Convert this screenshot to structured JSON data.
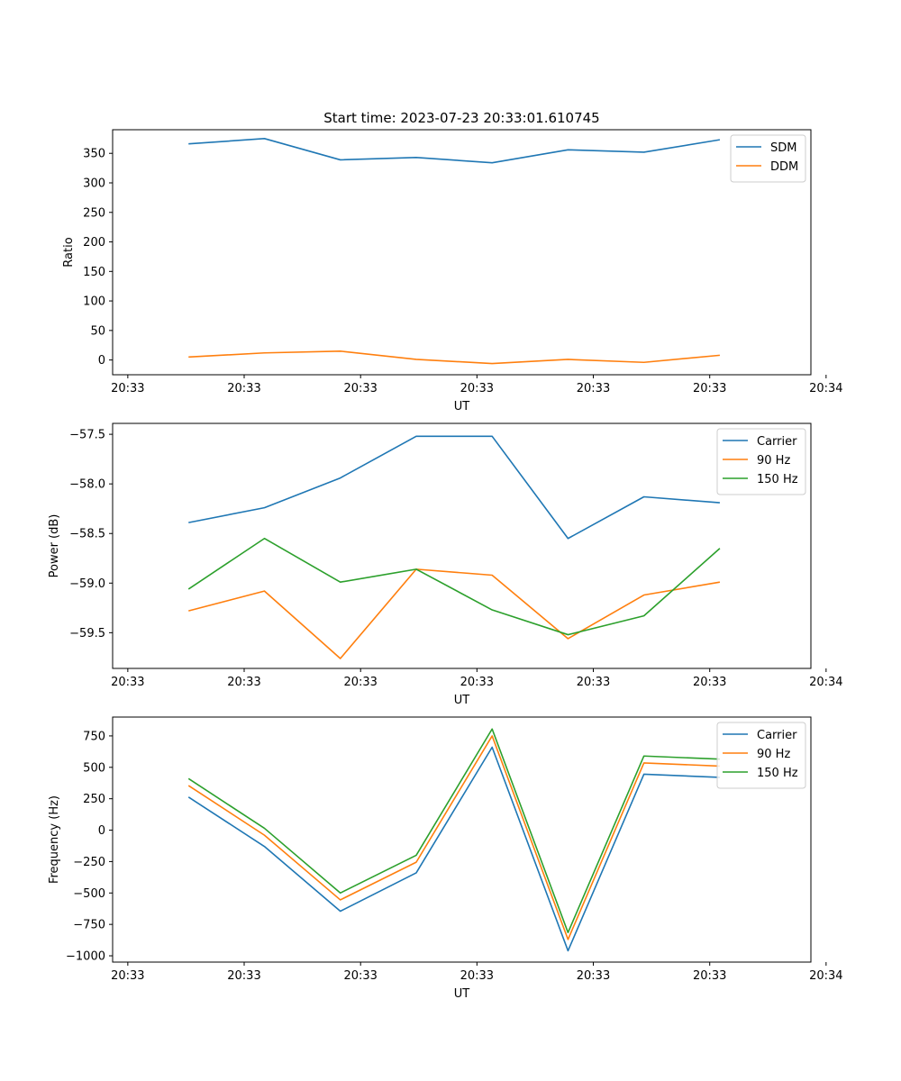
{
  "figure_title": "Start time: 2023-07-23 20:33:01.610745",
  "chart_data": [
    {
      "type": "line",
      "title": "Start time: 2023-07-23 20:33:01.610745",
      "xlabel": "UT",
      "ylabel": "Ratio",
      "xlim": [
        0,
        9.2
      ],
      "x_ticks": [
        0.2,
        1.733,
        3.267,
        4.8,
        6.333,
        7.867,
        9.4
      ],
      "x_tick_labels": [
        "20:33",
        "20:33",
        "20:33",
        "20:33",
        "20:33",
        "20:33",
        "20:34"
      ],
      "ylim": [
        -25,
        390
      ],
      "y_ticks": [
        0,
        50,
        100,
        150,
        200,
        250,
        300,
        350
      ],
      "y_tick_labels": [
        "0",
        "50",
        "100",
        "150",
        "200",
        "250",
        "300",
        "350"
      ],
      "x": [
        1,
        2,
        3,
        4,
        5,
        6,
        7,
        8
      ],
      "series": [
        {
          "name": "SDM",
          "color": "#1f77b4",
          "values": [
            366,
            375,
            339,
            343,
            334,
            356,
            352,
            373
          ]
        },
        {
          "name": "DDM",
          "color": "#ff7f0e",
          "values": [
            5,
            12,
            15,
            1,
            -6,
            1,
            -4,
            8
          ]
        }
      ],
      "legend": "top-right"
    },
    {
      "type": "line",
      "title": "",
      "xlabel": "UT",
      "ylabel": "Power (dB)",
      "xlim": [
        0,
        9.2
      ],
      "x_ticks": [
        0.2,
        1.733,
        3.267,
        4.8,
        6.333,
        7.867,
        9.4
      ],
      "x_tick_labels": [
        "20:33",
        "20:33",
        "20:33",
        "20:33",
        "20:33",
        "20:33",
        "20:34"
      ],
      "ylim": [
        -59.86,
        -57.39
      ],
      "y_ticks": [
        -59.5,
        -59.0,
        -58.5,
        -58.0,
        -57.5
      ],
      "y_tick_labels": [
        "−59.5",
        "−59.0",
        "−58.5",
        "−58.0",
        "−57.5"
      ],
      "x": [
        1,
        2,
        3,
        4,
        5,
        6,
        7,
        8
      ],
      "series": [
        {
          "name": "Carrier",
          "color": "#1f77b4",
          "values": [
            -58.39,
            -58.24,
            -57.94,
            -57.52,
            -57.52,
            -58.55,
            -58.13,
            -58.19
          ]
        },
        {
          "name": "90 Hz",
          "color": "#ff7f0e",
          "values": [
            -59.28,
            -59.08,
            -59.76,
            -58.86,
            -58.92,
            -59.56,
            -59.12,
            -58.99
          ]
        },
        {
          "name": "150 Hz",
          "color": "#2ca02c",
          "values": [
            -59.06,
            -58.55,
            -58.99,
            -58.86,
            -59.27,
            -59.52,
            -59.33,
            -58.65
          ]
        }
      ],
      "legend": "top-right"
    },
    {
      "type": "line",
      "title": "",
      "xlabel": "UT",
      "ylabel": "Frequency (Hz)",
      "xlim": [
        0,
        9.2
      ],
      "x_ticks": [
        0.2,
        1.733,
        3.267,
        4.8,
        6.333,
        7.867,
        9.4
      ],
      "x_tick_labels": [
        "20:33",
        "20:33",
        "20:33",
        "20:33",
        "20:33",
        "20:33",
        "20:34"
      ],
      "ylim": [
        -1050,
        900
      ],
      "y_ticks": [
        -1000,
        -750,
        -500,
        -250,
        0,
        250,
        500,
        750
      ],
      "y_tick_labels": [
        "−1000",
        "−750",
        "−500",
        "−250",
        "0",
        "250",
        "500",
        "750"
      ],
      "x": [
        1,
        2,
        3,
        4,
        5,
        6,
        7,
        8
      ],
      "series": [
        {
          "name": "Carrier",
          "color": "#1f77b4",
          "values": [
            263,
            -130,
            -645,
            -340,
            660,
            -960,
            445,
            420
          ]
        },
        {
          "name": "90 Hz",
          "color": "#ff7f0e",
          "values": [
            355,
            -40,
            -555,
            -255,
            750,
            -870,
            535,
            510
          ]
        },
        {
          "name": "150 Hz",
          "color": "#2ca02c",
          "values": [
            410,
            15,
            -500,
            -200,
            805,
            -815,
            590,
            565
          ]
        }
      ],
      "legend": "top-right"
    }
  ]
}
